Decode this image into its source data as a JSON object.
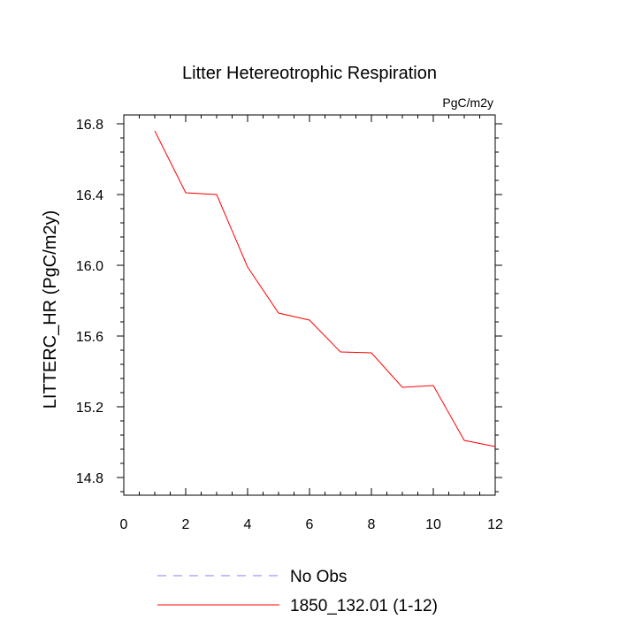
{
  "chart_data": {
    "type": "line",
    "title": "Litter Hetereotrophic Respiration",
    "units": "PgC/m2y",
    "xlabel": "",
    "ylabel": "LITTERC_HR  (PgC/m2y)",
    "xlim": [
      0,
      12
    ],
    "ylim": [
      14.7,
      16.85
    ],
    "xticks": [
      0,
      2,
      4,
      6,
      8,
      10,
      12
    ],
    "xtick_labels": [
      "0",
      "2",
      "4",
      "6",
      "8",
      "10",
      "12"
    ],
    "yticks": [
      14.8,
      15.2,
      15.6,
      16.0,
      16.4,
      16.8
    ],
    "ytick_labels": [
      "14.8",
      "15.2",
      "15.6",
      "16.0",
      "16.4",
      "16.8"
    ],
    "series": [
      {
        "name": "1850_132.01 (1-12)",
        "color": "#ff0000",
        "dash": "solid",
        "x": [
          1,
          2,
          3,
          4,
          5,
          6,
          7,
          8,
          9,
          10,
          11,
          12
        ],
        "y": [
          16.76,
          16.41,
          16.4,
          15.99,
          15.73,
          15.69,
          15.51,
          15.505,
          15.31,
          15.32,
          15.01,
          14.975
        ]
      }
    ],
    "legend": [
      {
        "label": "No Obs",
        "color": "#8080ff",
        "dash": "dashed"
      },
      {
        "label": "1850_132.01 (1-12)",
        "color": "#ff0000",
        "dash": "solid"
      }
    ],
    "legend_position": "bottom-center",
    "grid": false
  }
}
